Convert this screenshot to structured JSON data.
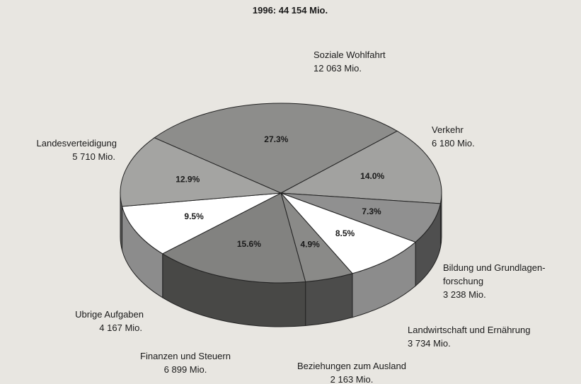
{
  "chart_data": {
    "type": "pie3d",
    "title": "1996: 44 154 Mio.",
    "categories": [
      "Soziale Wohlfahrt",
      "Verkehr",
      [
        "Bildung und Grundlagen-",
        "forschung"
      ],
      "Landwirtschaft und Ernährung",
      "Beziehungen zum Ausland",
      "Finanzen und Steuern",
      "Ubrige Aufgaben",
      "Landesverteidigung"
    ],
    "values": [
      12063,
      6180,
      3238,
      3734,
      2163,
      6899,
      4167,
      5710
    ],
    "value_labels": [
      "12 063 Mio.",
      "6 180 Mio.",
      "3 238 Mio.",
      "3 734 Mio.",
      "2 163 Mio.",
      "6 899 Mio.",
      "4 167 Mio.",
      "5 710 Mio."
    ],
    "percents": [
      27.3,
      14.0,
      7.3,
      8.5,
      4.9,
      15.6,
      9.5,
      12.9
    ],
    "percent_labels": [
      "27.3%",
      "14.0%",
      "7.3%",
      "8.5%",
      "4.9%",
      "15.6%",
      "9.5%",
      "12.9%"
    ],
    "colors": [
      "#8d8d8b",
      "#a2a2a0",
      "#909090",
      "#ffffff",
      "#8a8a88",
      "#828280",
      "#ffffff",
      "#a4a4a2"
    ]
  }
}
